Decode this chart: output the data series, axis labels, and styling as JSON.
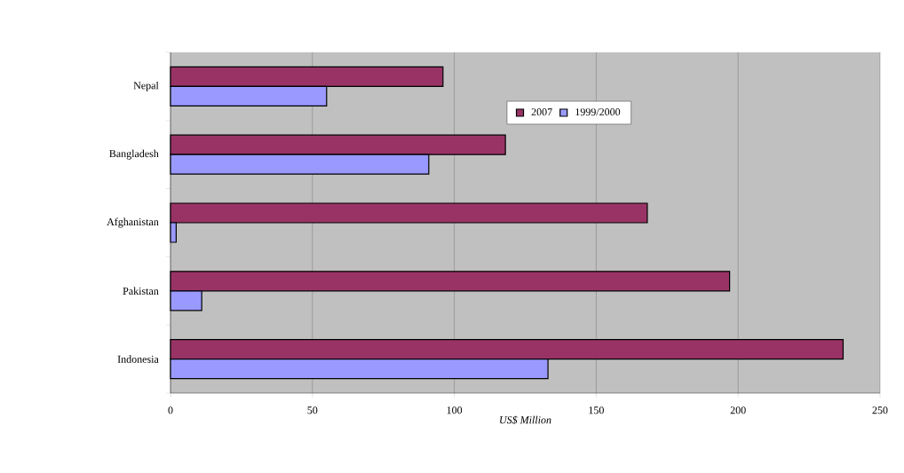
{
  "chart_data": {
    "type": "bar",
    "orientation": "horizontal",
    "xlabel": "US$ Million",
    "categories": [
      "Nepal",
      "Bangladesh",
      "Afghanistan",
      "Pakistan",
      "Indonesia"
    ],
    "series": [
      {
        "name": "2007",
        "color": "#993366",
        "values": [
          96,
          118,
          168,
          197,
          237
        ]
      },
      {
        "name": "1999/2000",
        "color": "#9999ff",
        "values": [
          55,
          91,
          2,
          11,
          133
        ]
      }
    ],
    "xlim": [
      0,
      250
    ],
    "xticks": [
      0,
      50,
      100,
      150,
      200,
      250
    ],
    "grid": "x",
    "legend": "top right"
  }
}
